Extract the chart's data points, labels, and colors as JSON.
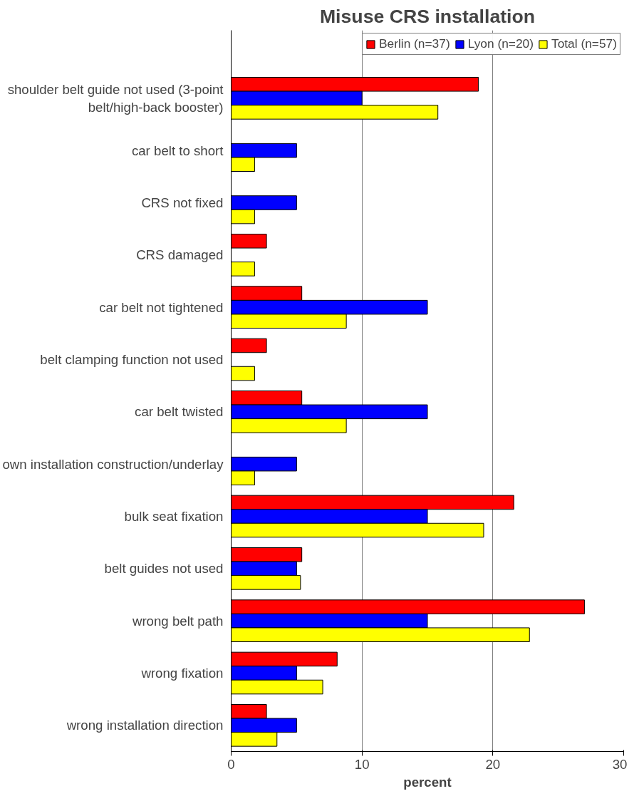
{
  "chart_data": {
    "type": "bar",
    "orientation": "horizontal",
    "title": "Misuse CRS installation",
    "xlabel": "percent",
    "categories": [
      "shoulder belt guide not used (3-point belt/high-back booster)",
      "car belt to short",
      "CRS not fixed",
      "CRS damaged",
      "car belt not tightened",
      "belt clamping function not used",
      "car belt twisted",
      "own installation construction/underlay",
      "bulk seat fixation",
      "belt guides not used",
      "wrong belt path",
      "wrong fixation",
      "wrong installation direction"
    ],
    "series": [
      {
        "name": "Berlin (n=37)",
        "color": "#ff0000",
        "values": [
          18.9,
          null,
          null,
          2.7,
          5.4,
          2.7,
          5.4,
          null,
          21.6,
          5.4,
          27.0,
          8.1,
          2.7
        ]
      },
      {
        "name": "Lyon (n=20)",
        "color": "#0000ff",
        "values": [
          10,
          5,
          5,
          null,
          15,
          null,
          15,
          5,
          15,
          5,
          15,
          5,
          5
        ]
      },
      {
        "name": "Total (n=57)",
        "color": "#ffff00",
        "values": [
          15.8,
          1.8,
          1.8,
          1.8,
          8.8,
          1.8,
          8.8,
          1.8,
          19.3,
          5.3,
          22.8,
          7.0,
          3.5
        ]
      }
    ],
    "xlim": [
      0,
      30
    ],
    "xticks": [
      0,
      10,
      20,
      30
    ],
    "grid": "x",
    "legend": "top right"
  }
}
